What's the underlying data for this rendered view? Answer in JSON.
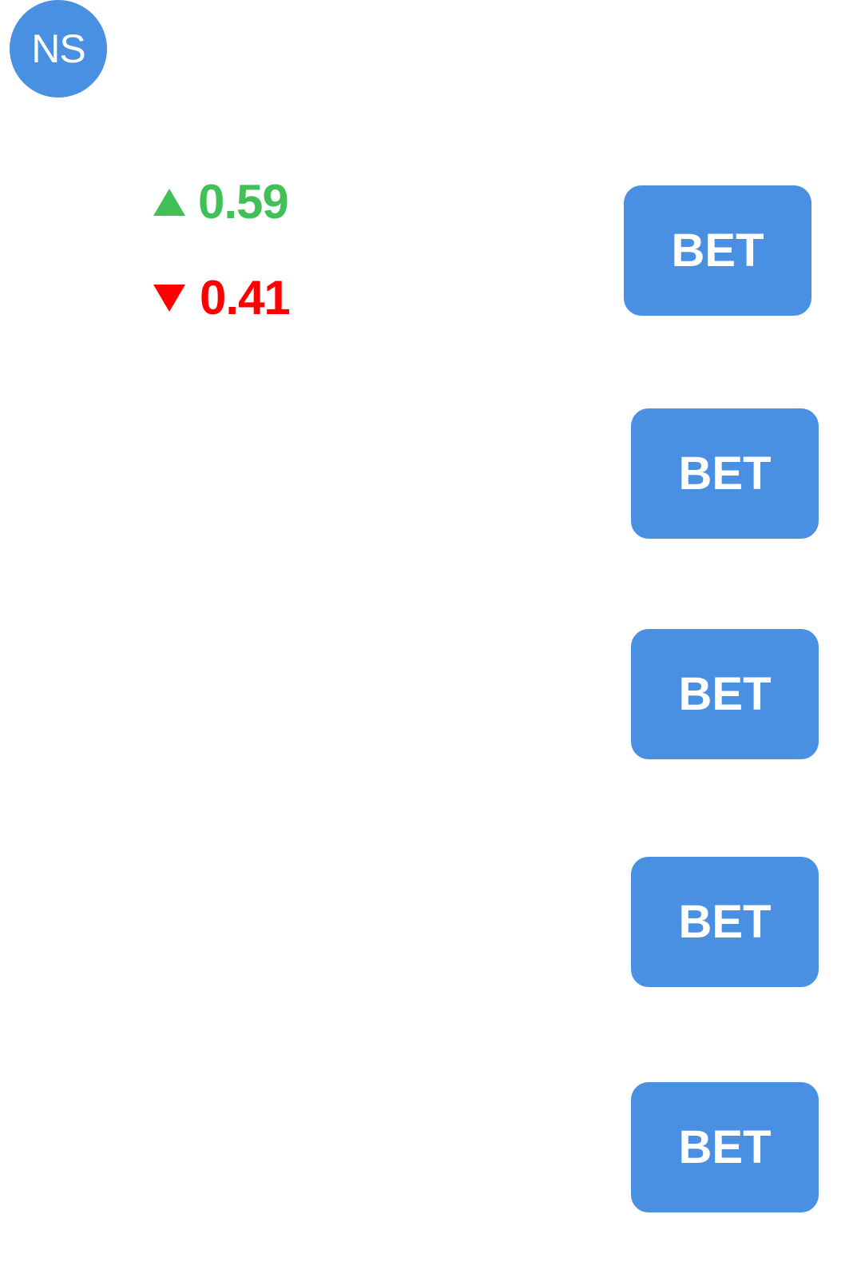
{
  "avatar": {
    "initials": "NS",
    "color": "#4a90e2"
  },
  "odds": {
    "up": {
      "icon": "triangle-up-icon",
      "value": "0.59",
      "color": "#40c057"
    },
    "down": {
      "icon": "triangle-down-icon",
      "value": "0.41",
      "color": "#ff0000"
    }
  },
  "bet_buttons": [
    {
      "label": "BET"
    },
    {
      "label": "BET"
    },
    {
      "label": "BET"
    },
    {
      "label": "BET"
    },
    {
      "label": "BET"
    }
  ],
  "colors": {
    "accent": "#4a90e2",
    "button_text": "#ffffff"
  }
}
